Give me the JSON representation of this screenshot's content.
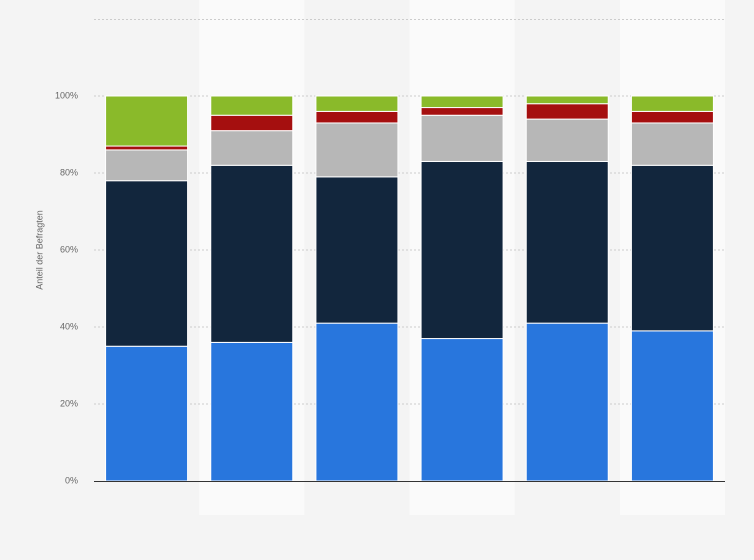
{
  "chart_data": {
    "type": "stacked_bar",
    "y_label": "Anteil der Befragten",
    "categories": [
      null,
      null,
      null,
      null,
      null,
      null
    ],
    "series": [
      {
        "color": "#2876dd",
        "values": [
          35,
          36,
          41,
          37,
          41,
          39
        ]
      },
      {
        "color": "#12263d",
        "values": [
          43,
          46,
          38,
          46,
          42,
          43
        ]
      },
      {
        "color": "#b7b7b7",
        "values": [
          8,
          9,
          14,
          12,
          11,
          11
        ]
      },
      {
        "color": "#a50f0f",
        "values": [
          1,
          4,
          3,
          2,
          4,
          3
        ]
      },
      {
        "color": "#8aba2a",
        "values": [
          13,
          5,
          4,
          3,
          2,
          4
        ]
      }
    ],
    "ylim": [
      0,
      120
    ],
    "yticks": [
      {
        "value": 0,
        "label": "0%"
      },
      {
        "value": 20,
        "label": "20%"
      },
      {
        "value": 40,
        "label": "40%"
      },
      {
        "value": 60,
        "label": "60%"
      },
      {
        "value": 80,
        "label": "80%"
      },
      {
        "value": 100,
        "label": "100%"
      }
    ],
    "grid": true
  }
}
